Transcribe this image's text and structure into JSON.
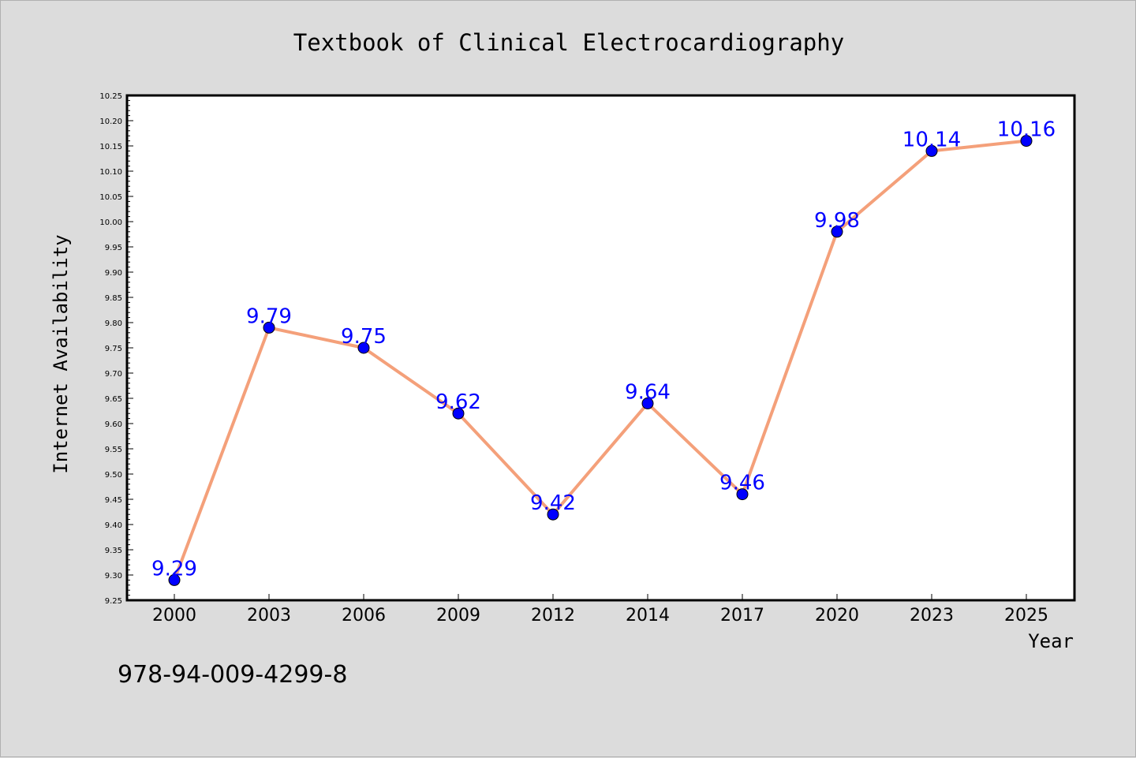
{
  "chart_data": {
    "type": "line",
    "title": "Textbook of Clinical Electrocardiography",
    "xlabel": "Year",
    "ylabel": "Internet Availability",
    "categories": [
      "2000",
      "2003",
      "2006",
      "2009",
      "2012",
      "2014",
      "2017",
      "2020",
      "2023",
      "2025"
    ],
    "series": [
      {
        "values": [
          9.29,
          9.79,
          9.75,
          9.62,
          9.42,
          9.64,
          9.46,
          9.98,
          10.14,
          10.16
        ],
        "line_color": "#f4a07a",
        "marker_color": "#0000ff"
      }
    ],
    "data_labels": [
      "9.29",
      "9.79",
      "9.75",
      "9.62",
      "9.42",
      "9.64",
      "9.46",
      "9.98",
      "10.14",
      "10.16"
    ],
    "ylim": [
      9.25,
      10.25
    ],
    "y_ticks": [
      "9.25",
      "9.30",
      "9.35",
      "9.40",
      "9.45",
      "9.50",
      "9.55",
      "9.60",
      "9.65",
      "9.70",
      "9.75",
      "9.80",
      "9.85",
      "9.90",
      "9.95",
      "10.00",
      "10.05",
      "10.10",
      "10.15",
      "10.20",
      "10.25"
    ],
    "grid": false,
    "legend": "none",
    "annotation": "978-94-009-4299-8",
    "background": "#dcdcdc",
    "plot_background": "#ffffff",
    "label_color": "#0000ff"
  }
}
